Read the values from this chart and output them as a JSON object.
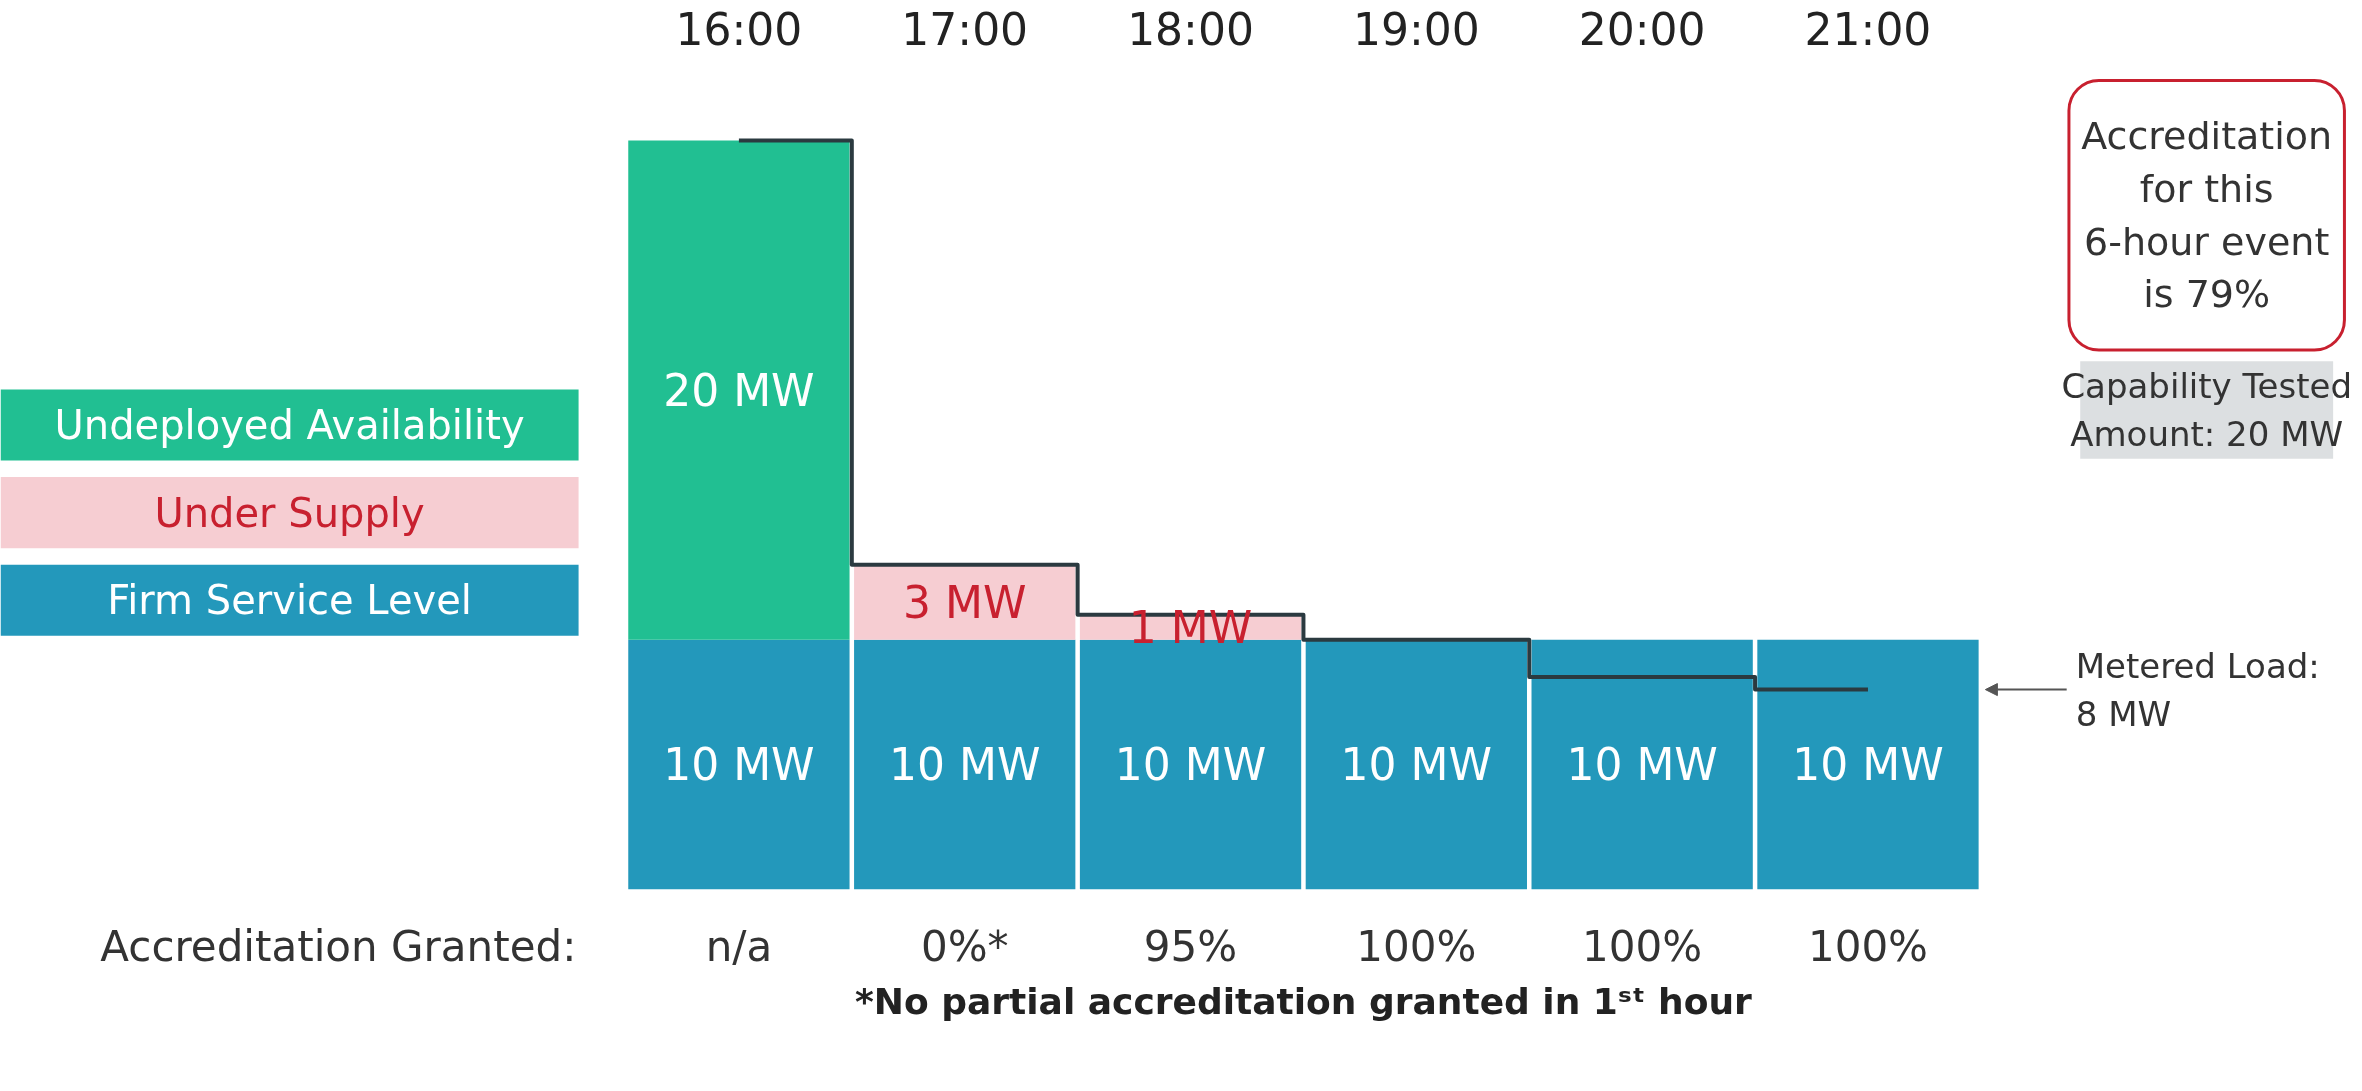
{
  "chart_data": {
    "type": "bar",
    "stacked": true,
    "categories": [
      "16:00",
      "17:00",
      "18:00",
      "19:00",
      "20:00",
      "21:00"
    ],
    "tick_labels": "x",
    "grid": false,
    "legend": "left",
    "series": [
      {
        "name": "Firm Service Level",
        "color": "#2398bb",
        "values": [
          10,
          10,
          10,
          10,
          10,
          10
        ],
        "value_labels": [
          "10 MW",
          "10 MW",
          "10 MW",
          "10 MW",
          "10 MW",
          "10 MW"
        ]
      },
      {
        "name": "Under Supply",
        "color": "#f6cdd2",
        "values": [
          null,
          3,
          1,
          null,
          null,
          null
        ],
        "value_labels": [
          null,
          "3 MW",
          "1 MW",
          null,
          null,
          null
        ]
      },
      {
        "name": "Undeployed Availability",
        "color": "#21bf92",
        "values": [
          20,
          null,
          null,
          null,
          null,
          null
        ],
        "value_labels": [
          "20 MW",
          null,
          null,
          null,
          null,
          null
        ]
      },
      {
        "type": "step",
        "color": "#2b3a40",
        "values": [
          30,
          13,
          11,
          10,
          8.5,
          8
        ]
      }
    ],
    "annotations": [
      "Accreditation Granted:",
      "Accreditation for this 6-hour event is 79%",
      "Capability Tested Amount: 20 MW",
      "*No partial accreditation granted in 1ˢᵗ hour",
      "n/a",
      "0%*",
      "95%",
      "100%",
      "100%",
      "100%",
      "Metered Load: 8 MW"
    ]
  }
}
